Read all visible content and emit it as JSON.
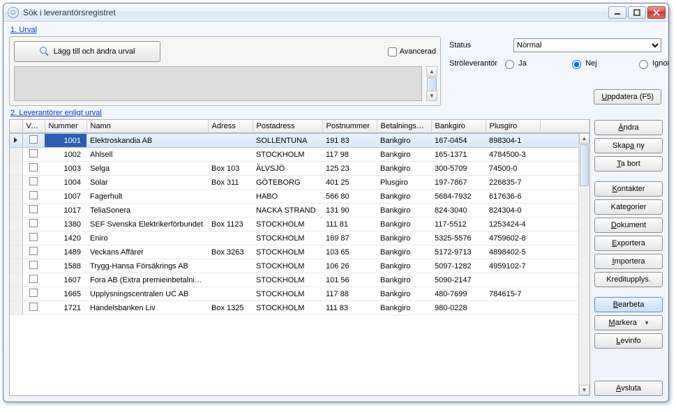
{
  "window": {
    "title": "Sök i leverantörsregistret"
  },
  "section1": {
    "label": "1. Urval"
  },
  "urval": {
    "add_button": "Lägg till och ändra urval",
    "advanced_label": "Avancerad",
    "advanced_checked": false
  },
  "filters": {
    "status_label": "Status",
    "status_value": "Normal",
    "stro_label": "Ströleverantör",
    "radio_ja": "Ja",
    "radio_nej": "Nej",
    "radio_ignorera": "Ignorera",
    "radio_selected": "nej"
  },
  "update_button": "Uppdatera (F5)",
  "section2": {
    "label": "2. Leverantörer enligt urval"
  },
  "columns": {
    "vald": "Vald",
    "nummer": "Nummer",
    "namn": "Namn",
    "adress": "Adress",
    "postadress": "Postadress",
    "postnummer": "Postnummer",
    "betalningskod": "Betalningskod",
    "bankgiro": "Bankgiro",
    "plusgiro": "Plusgiro"
  },
  "rows": [
    {
      "num": "1001",
      "namn": "Elektroskandia AB",
      "adr": "",
      "post": "SOLLENTUNA",
      "pn": "191 83",
      "bk": "Bankgiro",
      "bg": "167-0454",
      "pg": "898304-1",
      "sel": true
    },
    {
      "num": "1002",
      "namn": "Ahlsell",
      "adr": "",
      "post": "STOCKHOLM",
      "pn": "117 98",
      "bk": "Bankgiro",
      "bg": "165-1371",
      "pg": "4784500-3"
    },
    {
      "num": "1003",
      "namn": "Selga",
      "adr": "Box 103",
      "post": "ÄLVSJÖ",
      "pn": "125 23",
      "bk": "Bankgiro",
      "bg": "300-5709",
      "pg": "74500-0"
    },
    {
      "num": "1004",
      "namn": "Solar",
      "adr": "Box 311",
      "post": "GÖTEBORG",
      "pn": "401 25",
      "bk": "Plusgiro",
      "bg": "197-7867",
      "pg": "226835-7"
    },
    {
      "num": "1007",
      "namn": "Fagerhult",
      "adr": "",
      "post": "HABO",
      "pn": "566 80",
      "bk": "Bankgiro",
      "bg": "5684-7932",
      "pg": "617636-6"
    },
    {
      "num": "1017",
      "namn": "TeliaSonera",
      "adr": "",
      "post": "NACKA STRAND",
      "pn": "131 90",
      "bk": "Bankgiro",
      "bg": "824-3040",
      "pg": "824304-0"
    },
    {
      "num": "1380",
      "namn": "SEF Svenska Elektrikerförbundet",
      "adr": "Box 1123",
      "post": "STOCKHOLM",
      "pn": "111 81",
      "bk": "Bankgiro",
      "bg": "117-5512",
      "pg": "1253424-4"
    },
    {
      "num": "1420",
      "namn": "Eniro",
      "adr": "",
      "post": "STOCKHOLM",
      "pn": "169 87",
      "bk": "Bankgiro",
      "bg": "5325-5576",
      "pg": "4759602-8"
    },
    {
      "num": "1489",
      "namn": "Veckans Affärer",
      "adr": "Box 3263",
      "post": "STOCKHOLM",
      "pn": "103 65",
      "bk": "Bankgiro",
      "bg": "5172-9713",
      "pg": "4898402-5"
    },
    {
      "num": "1588",
      "namn": "Trygg-Hansa Försäkrings AB",
      "adr": "",
      "post": "STOCKHOLM",
      "pn": "106 26",
      "bk": "Bankgiro",
      "bg": "5097-1282",
      "pg": "4959102-7"
    },
    {
      "num": "1607",
      "namn": "Fora AB (Extra premieinbetalning)",
      "adr": "",
      "post": "STOCKHOLM",
      "pn": "101 56",
      "bk": "Bankgiro",
      "bg": "5090-2147",
      "pg": ""
    },
    {
      "num": "1665",
      "namn": "Upplysningscentralen UC AB",
      "adr": "",
      "post": "STOCKHOLM",
      "pn": "117 88",
      "bk": "Bankgiro",
      "bg": "480-7699",
      "pg": "784615-7"
    },
    {
      "num": "1721",
      "namn": "Handelsbanken Liv",
      "adr": "Box 1325",
      "post": "STOCKHOLM",
      "pn": "111 83",
      "bk": "Bankgiro",
      "bg": "980-0228",
      "pg": ""
    }
  ],
  "actions": {
    "andra": "Ändra",
    "skapany": "Skapa ny",
    "tabort": "Ta bort",
    "kontakter": "Kontakter",
    "kategorier": "Kategorier",
    "dokument": "Dokument",
    "exportera": "Exportera",
    "importera": "Importera",
    "kreditupplys": "Kreditupplys.",
    "bearbeta": "Bearbeta",
    "markera": "Markera",
    "levinfo": "Levinfo",
    "avsluta": "Avsluta"
  }
}
